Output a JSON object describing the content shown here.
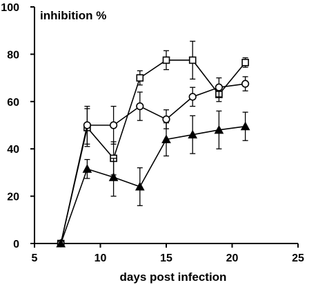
{
  "chart_data": {
    "type": "line",
    "title": "",
    "xlabel": "days post infection",
    "ylabel": "inhibition %",
    "xlim": [
      5,
      25
    ],
    "ylim": [
      0,
      100
    ],
    "x_ticks": [
      5,
      10,
      15,
      20,
      25
    ],
    "y_ticks": [
      0,
      20,
      40,
      60,
      80,
      100
    ],
    "grid": false,
    "legend": "none",
    "series": [
      {
        "marker": "open-square",
        "x": [
          7,
          9,
          11,
          13,
          15,
          17,
          19,
          21
        ],
        "y": [
          0,
          49,
          36,
          70,
          77.5,
          77.5,
          63,
          76.5
        ],
        "error": [
          0,
          8,
          7,
          3,
          4,
          8,
          3,
          2
        ]
      },
      {
        "marker": "open-circle",
        "x": [
          7,
          9,
          11,
          13,
          15,
          17,
          19,
          21
        ],
        "y": [
          0,
          50,
          50,
          58,
          52.5,
          62,
          66,
          67.5
        ],
        "error": [
          0,
          8,
          8,
          6,
          4,
          4,
          4,
          3
        ]
      },
      {
        "marker": "filled-triangle",
        "x": [
          7,
          9,
          11,
          13,
          15,
          17,
          19,
          21
        ],
        "y": [
          0,
          31.5,
          28,
          24,
          44,
          46,
          48,
          49.5
        ],
        "error": [
          0,
          4,
          8,
          8,
          7,
          8,
          8,
          6
        ]
      }
    ]
  }
}
